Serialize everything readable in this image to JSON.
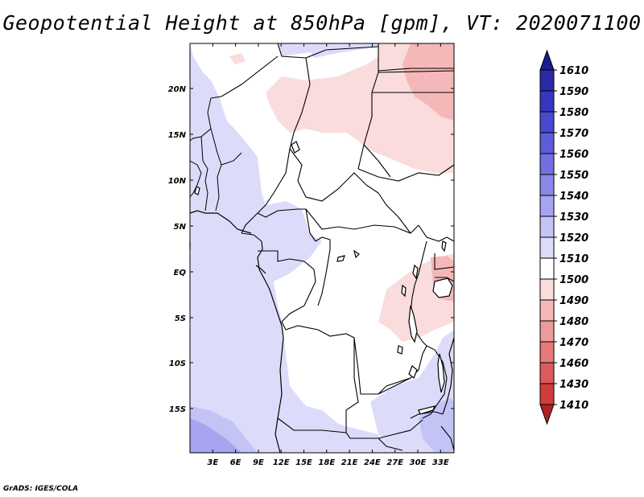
{
  "title": "Geopotential Height at 850hPa [gpm], VT: 2020071100",
  "credit": "GrADS: IGES/COLA",
  "lat_labels": [
    "20N",
    "15N",
    "10N",
    "5N",
    "EQ",
    "5S",
    "10S",
    "15S"
  ],
  "lon_labels": [
    "3E",
    "6E",
    "9E",
    "12E",
    "15E",
    "18E",
    "21E",
    "24E",
    "27E",
    "30E",
    "33E"
  ],
  "colorbar": {
    "labels": [
      "1610",
      "1590",
      "1580",
      "1570",
      "1560",
      "1550",
      "1540",
      "1530",
      "1520",
      "1510",
      "1500",
      "1490",
      "1480",
      "1470",
      "1460",
      "1430",
      "1410"
    ],
    "colors": [
      "#1e1c8c",
      "#2c29a8",
      "#3836c0",
      "#4a48d0",
      "#5e5cda",
      "#7270e0",
      "#8a88e8",
      "#a6a4f0",
      "#c4c3f6",
      "#dcdcfa",
      "#ffffff",
      "#fadcdc",
      "#f4b8b8",
      "#ec9a9a",
      "#e47a7a",
      "#dc5a5a",
      "#d23c3c",
      "#b42020"
    ]
  }
}
